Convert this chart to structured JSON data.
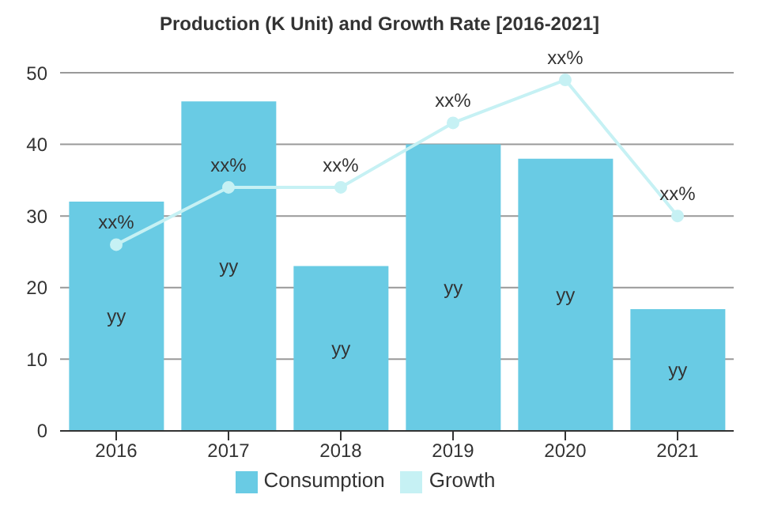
{
  "chart_data": {
    "type": "bar",
    "title": "Production (K Unit) and Growth Rate [2016-2021]",
    "categories": [
      "2016",
      "2017",
      "2018",
      "2019",
      "2020",
      "2021"
    ],
    "series": [
      {
        "name": "Consumption",
        "color": "#69cbe4",
        "values": [
          32,
          46,
          23,
          40,
          38,
          17
        ],
        "value_labels": [
          "yy",
          "yy",
          "yy",
          "yy",
          "yy",
          "yy"
        ]
      },
      {
        "name": "Growth",
        "type": "line",
        "color": "#c6f1f4",
        "values": [
          26,
          34,
          34,
          43,
          49,
          30
        ],
        "value_labels": [
          "xx%",
          "xx%",
          "xx%",
          "xx%",
          "xx%",
          "xx%"
        ]
      }
    ],
    "ylim": [
      0,
      50
    ],
    "yticks": [
      0,
      10,
      20,
      30,
      40,
      50
    ],
    "grid": "y",
    "legend": "bottom",
    "marker": "circle"
  }
}
